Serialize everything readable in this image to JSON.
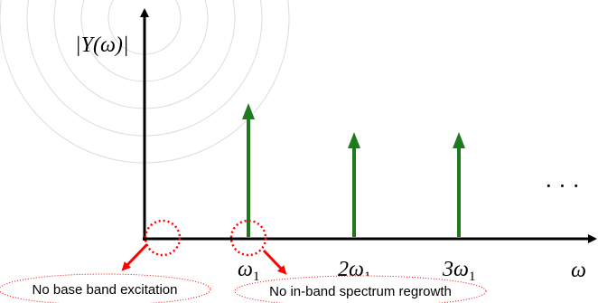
{
  "y_axis_label": "|Y(ω)|",
  "x_axis_label": "ω",
  "ellipsis": "· · ·",
  "tick_labels": [
    {
      "base": "ω",
      "sub": "1"
    },
    {
      "base": "2ω",
      "sub": "1"
    },
    {
      "base": "3ω",
      "sub": "1"
    }
  ],
  "annotations": {
    "baseband": "No base band excitation",
    "inband": "No in-band spectrum regrowth"
  },
  "colors": {
    "axis": "#000000",
    "spectral_line": "#1f7a1f",
    "highlight": "#ff0000",
    "background_rings": "#d9d9d9"
  }
}
